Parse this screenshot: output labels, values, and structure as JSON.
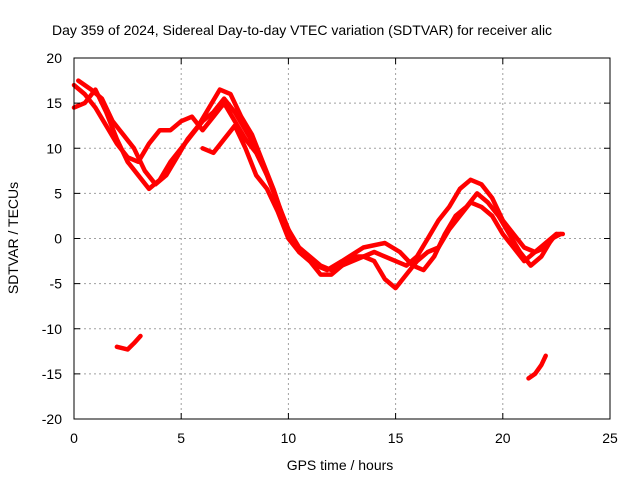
{
  "chart_data": {
    "type": "line",
    "title": "Day 359 of 2024, Sidereal Day-to-day VTEC variation (SDTVAR) for receiver alic",
    "xlabel": "GPS time / hours",
    "ylabel": "SDTVAR / TECUs",
    "xlim": [
      0,
      25
    ],
    "ylim": [
      -20,
      20
    ],
    "xticks": [
      0,
      5,
      10,
      15,
      20,
      25
    ],
    "yticks": [
      -20,
      -15,
      -10,
      -5,
      0,
      5,
      10,
      15,
      20
    ],
    "grid": true,
    "color": "#ff0000",
    "series": [
      {
        "name": "track-1",
        "x": [
          0.0,
          0.5,
          1.0,
          1.5,
          2.0,
          2.5,
          3.0,
          3.5,
          4.0,
          4.5,
          5.0,
          5.5,
          6.0,
          6.5,
          7.0,
          7.5,
          8.0,
          8.5,
          9.0,
          9.5,
          10.0,
          10.5,
          11.0,
          11.5,
          12.0,
          12.5,
          13.0,
          13.5,
          14.0,
          14.5,
          15.0,
          15.5,
          16.0,
          16.5,
          17.0,
          17.5,
          18.0,
          18.5,
          19.0,
          19.5,
          20.0,
          20.5,
          21.0,
          21.5,
          22.0,
          22.5,
          22.8
        ],
        "y": [
          17.0,
          16.0,
          14.5,
          12.5,
          10.5,
          9.0,
          8.5,
          10.5,
          12.0,
          12.0,
          13.0,
          13.5,
          12.0,
          13.5,
          15.0,
          13.0,
          11.0,
          9.5,
          7.0,
          4.0,
          0.5,
          -1.5,
          -2.5,
          -4.0,
          -4.0,
          -3.0,
          -2.0,
          -2.0,
          -2.5,
          -4.5,
          -5.5,
          -4.0,
          -2.5,
          -1.5,
          -1.0,
          1.0,
          2.5,
          4.0,
          3.5,
          2.5,
          0.5,
          -1.0,
          -2.5,
          -1.5,
          -1.0,
          0.5,
          0.5
        ]
      },
      {
        "name": "track-2",
        "x": [
          0.0,
          0.5,
          1.0,
          1.5,
          2.0,
          2.5,
          3.0,
          3.5,
          4.0,
          4.5,
          5.0,
          5.5,
          6.0,
          6.5,
          7.0,
          7.5,
          8.0,
          8.5,
          9.0,
          9.5,
          10.0,
          10.5,
          11.0,
          11.5,
          12.0,
          13.0,
          14.0,
          15.0,
          15.5,
          16.0,
          16.5,
          17.0,
          17.5,
          18.0,
          18.5,
          19.0,
          19.5,
          20.0,
          20.5,
          21.0,
          21.5,
          22.0,
          22.5
        ],
        "y": [
          14.5,
          15.0,
          16.5,
          14.0,
          11.0,
          8.5,
          7.0,
          5.5,
          6.5,
          8.5,
          10.0,
          11.5,
          13.0,
          14.0,
          15.5,
          14.0,
          12.0,
          10.0,
          7.0,
          4.0,
          1.0,
          -1.0,
          -2.0,
          -3.0,
          -3.5,
          -2.5,
          -1.5,
          -2.5,
          -3.0,
          -2.0,
          0.0,
          2.0,
          3.5,
          5.5,
          6.5,
          6.0,
          4.5,
          2.0,
          0.5,
          -1.0,
          -1.5,
          -0.5,
          0.5
        ]
      },
      {
        "name": "track-3",
        "x": [
          0.2,
          0.8,
          1.3,
          1.8,
          2.3,
          2.8,
          3.3,
          3.8,
          4.3,
          4.8,
          5.3,
          5.8,
          6.3,
          6.8,
          7.3,
          7.8,
          8.3,
          8.8,
          9.3,
          9.8,
          10.3,
          10.8,
          11.3,
          11.8,
          12.5,
          13.5,
          14.5,
          15.2,
          15.8,
          16.3,
          16.8,
          17.3,
          17.8,
          18.3,
          18.8,
          19.3,
          19.8,
          20.3,
          20.8,
          21.3,
          21.8,
          22.3,
          22.7
        ],
        "y": [
          17.5,
          16.5,
          15.5,
          13.0,
          11.5,
          10.0,
          7.5,
          6.0,
          7.0,
          9.0,
          11.0,
          12.5,
          14.5,
          16.5,
          16.0,
          13.5,
          11.5,
          8.5,
          5.5,
          2.0,
          -0.5,
          -2.0,
          -3.0,
          -3.5,
          -2.5,
          -1.0,
          -0.5,
          -1.5,
          -3.0,
          -3.5,
          -2.0,
          0.5,
          2.5,
          3.5,
          5.0,
          4.0,
          2.5,
          0.5,
          -1.5,
          -3.0,
          -2.0,
          0.0,
          0.5
        ]
      },
      {
        "name": "track-4",
        "x": [
          6.0,
          6.5,
          7.0,
          7.5,
          8.0,
          8.5,
          9.0,
          9.5,
          10.0,
          10.5,
          11.0
        ],
        "y": [
          10.0,
          9.5,
          11.0,
          12.5,
          10.0,
          7.0,
          5.5,
          3.0,
          0.0,
          -1.5,
          -2.5
        ]
      },
      {
        "name": "segment-a",
        "x": [
          2.0,
          2.5,
          2.8,
          3.1
        ],
        "y": [
          -12.0,
          -12.3,
          -11.6,
          -10.8
        ]
      },
      {
        "name": "segment-b",
        "x": [
          21.2,
          21.5,
          21.8,
          22.0
        ],
        "y": [
          -15.5,
          -15.0,
          -14.0,
          -13.0
        ]
      }
    ]
  }
}
